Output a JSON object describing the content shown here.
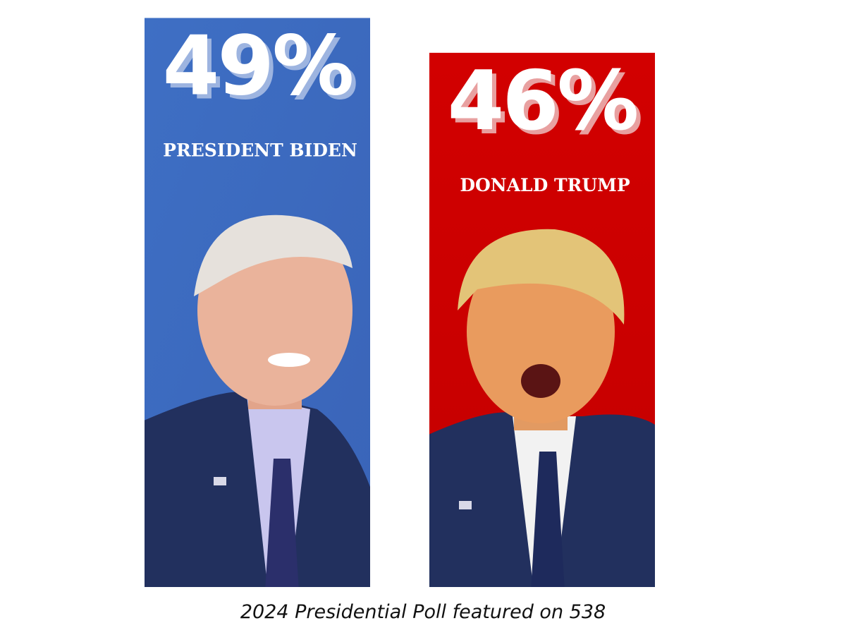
{
  "chart_data": {
    "type": "bar",
    "title": "",
    "categories": [
      "PRESIDENT BIDEN",
      "DONALD TRUMP"
    ],
    "values": [
      49,
      46
    ],
    "value_labels": [
      "49%",
      "46%"
    ],
    "colors": [
      "#4472c4",
      "#cc0000"
    ],
    "ylim": [
      0,
      100
    ],
    "grid": false,
    "legend": "none"
  },
  "caption": "2024 Presidential Poll featured on 538"
}
